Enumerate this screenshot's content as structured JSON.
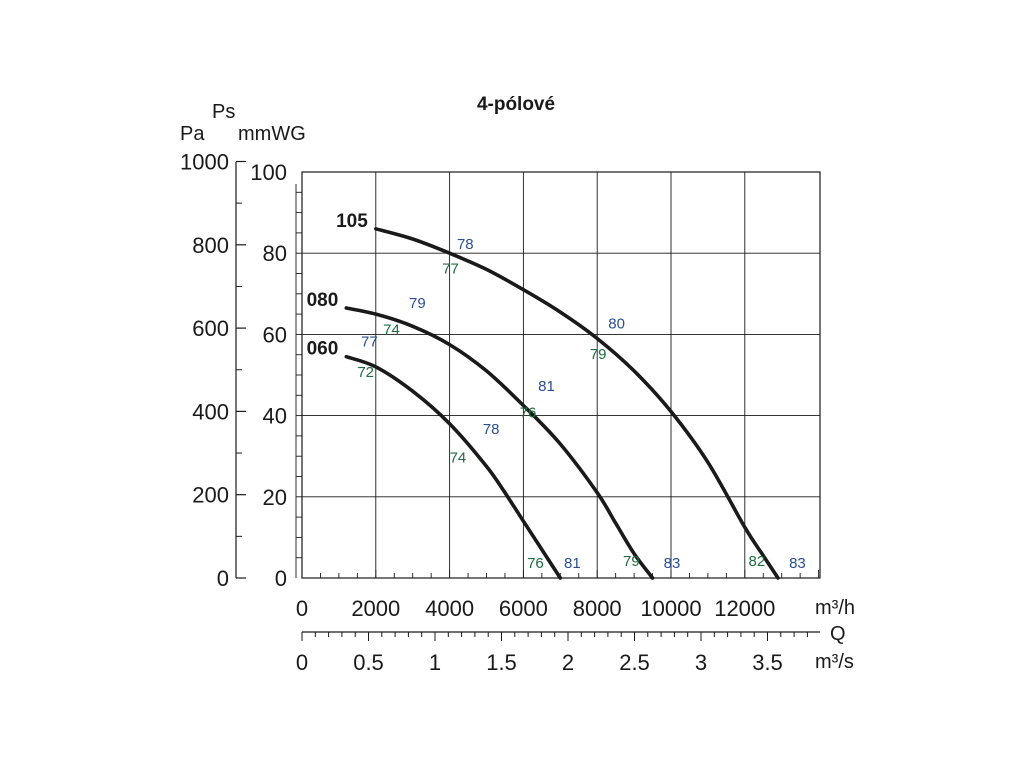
{
  "chart_data": {
    "type": "line",
    "title": "4-pólové",
    "y_units": {
      "pa": "Pa",
      "ps": "Ps",
      "mmwg": "mmWG"
    },
    "x_units": {
      "m3h": "m³/h",
      "q": "Q",
      "m3s": "m³/s"
    },
    "pa_ticks": [
      "1000",
      "800",
      "600",
      "400",
      "200",
      "0"
    ],
    "pa_values": [
      1000,
      800,
      600,
      400,
      200,
      0
    ],
    "mmwg_ticks": [
      "100",
      "80",
      "60",
      "40",
      "20",
      "0"
    ],
    "mmwg_values": [
      100,
      80,
      60,
      40,
      20,
      0
    ],
    "m3h_ticks": [
      "0",
      "2000",
      "4000",
      "6000",
      "8000",
      "10000",
      "12000"
    ],
    "m3h_values": [
      0,
      2000,
      4000,
      6000,
      8000,
      10000,
      12000
    ],
    "m3s_ticks": [
      "0",
      "0.5",
      "1",
      "1.5",
      "2",
      "2.5",
      "3",
      "3.5"
    ],
    "m3s_values": [
      0,
      0.5,
      1,
      1.5,
      2,
      2.5,
      3,
      3.5
    ],
    "xlim": [
      0,
      14500
    ],
    "ylim_mmwg": [
      0,
      100
    ],
    "grid": true,
    "colors": {
      "curve": "#1a1a1a",
      "blue": "#2a4f8f",
      "green": "#1e6b3e"
    },
    "series": [
      {
        "name": "105",
        "x": [
          2000,
          3000,
          4000,
          5000,
          6000,
          7000,
          8000,
          9000,
          10000,
          11000,
          12000,
          12500,
          12900
        ],
        "y": [
          86,
          83.5,
          80,
          76,
          71,
          65.5,
          59,
          51,
          41,
          28.5,
          12.5,
          5.5,
          0
        ]
      },
      {
        "name": "080",
        "x": [
          1200,
          2000,
          3000,
          4000,
          5000,
          6000,
          7000,
          8000,
          8500,
          9000,
          9500
        ],
        "y": [
          66.5,
          65,
          62,
          57.5,
          51,
          42.5,
          33,
          21,
          13.5,
          6,
          0
        ]
      },
      {
        "name": "060",
        "x": [
          1200,
          2000,
          3000,
          4000,
          5000,
          5500,
          6000,
          6500,
          7000
        ],
        "y": [
          54.5,
          52,
          46,
          38,
          27.5,
          21,
          14,
          7,
          0
        ]
      }
    ],
    "annotations": [
      {
        "text": "78",
        "x": 4200,
        "y": 81,
        "color": "blue"
      },
      {
        "text": "77",
        "x": 3800,
        "y": 75,
        "color": "green"
      },
      {
        "text": "80",
        "x": 8300,
        "y": 61.5,
        "color": "blue"
      },
      {
        "text": "79",
        "x": 7800,
        "y": 54,
        "color": "green"
      },
      {
        "text": "79",
        "x": 2900,
        "y": 66.5,
        "color": "blue"
      },
      {
        "text": "74",
        "x": 2200,
        "y": 60,
        "color": "green"
      },
      {
        "text": "77",
        "x": 1600,
        "y": 57,
        "color": "blue"
      },
      {
        "text": "72",
        "x": 1500,
        "y": 49.5,
        "color": "green"
      },
      {
        "text": "81",
        "x": 6400,
        "y": 46,
        "color": "blue"
      },
      {
        "text": "76",
        "x": 5900,
        "y": 39.5,
        "color": "green"
      },
      {
        "text": "78",
        "x": 4900,
        "y": 35.5,
        "color": "blue"
      },
      {
        "text": "74",
        "x": 4000,
        "y": 28.5,
        "color": "green"
      },
      {
        "text": "76",
        "x": 6100,
        "y": 2.5,
        "color": "green"
      },
      {
        "text": "81",
        "x": 7100,
        "y": 2.5,
        "color": "blue"
      },
      {
        "text": "79",
        "x": 8700,
        "y": 3,
        "color": "green"
      },
      {
        "text": "83",
        "x": 9800,
        "y": 2.5,
        "color": "blue"
      },
      {
        "text": "82",
        "x": 12100,
        "y": 3,
        "color": "green"
      },
      {
        "text": "83",
        "x": 13200,
        "y": 2.5,
        "color": "blue"
      }
    ]
  }
}
